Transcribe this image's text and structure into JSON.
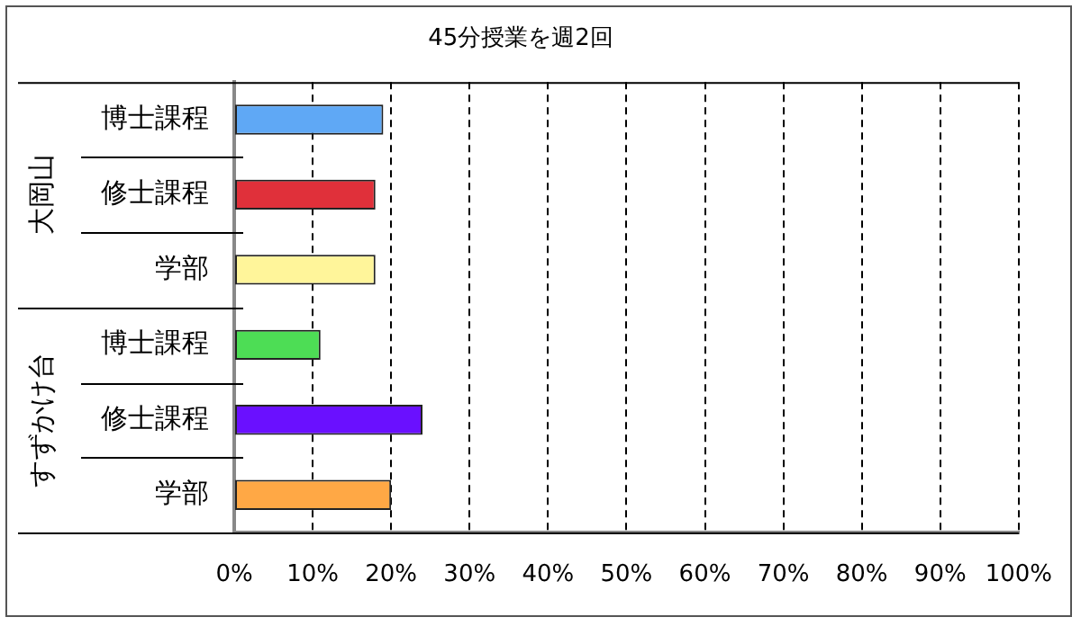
{
  "chart_data": {
    "type": "bar",
    "orientation": "horizontal",
    "title": "45分授業を週2回",
    "categories": [
      "博士課程",
      "修士課程",
      "学部",
      "博士課程",
      "修士課程",
      "学部"
    ],
    "values": [
      19,
      18,
      18,
      11,
      24,
      20
    ],
    "colors": [
      "#5fa8f5",
      "#e0303a",
      "#fff59a",
      "#4ddd55",
      "#6a10ff",
      "#ffa845"
    ],
    "annotations": [
      "大岡山",
      "すずかけ台"
    ],
    "xlim": [
      0,
      100
    ],
    "xticks": [
      {
        "value": 0,
        "label": "0%"
      },
      {
        "value": 10,
        "label": "10%"
      },
      {
        "value": 20,
        "label": "20%"
      },
      {
        "value": 30,
        "label": "30%"
      },
      {
        "value": 40,
        "label": "40%"
      },
      {
        "value": 50,
        "label": "50%"
      },
      {
        "value": 60,
        "label": "60%"
      },
      {
        "value": 70,
        "label": "70%"
      },
      {
        "value": 80,
        "label": "80%"
      },
      {
        "value": 90,
        "label": "90%"
      },
      {
        "value": 100,
        "label": "100%"
      }
    ],
    "grid": "x",
    "legend": false
  }
}
